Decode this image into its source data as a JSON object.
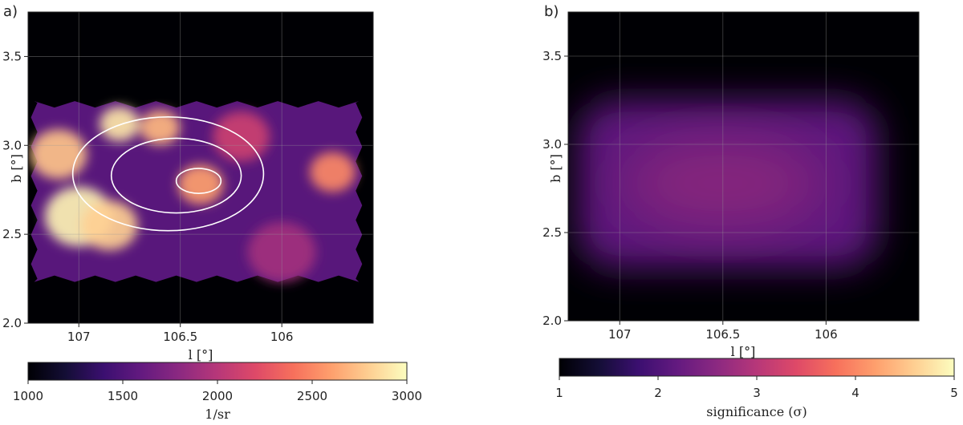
{
  "chart_data": [
    {
      "type": "heatmap",
      "panel_label": "a)",
      "xlabel": "l [°]",
      "ylabel": "b [°]",
      "xlim": [
        107.25,
        105.55
      ],
      "ylim": [
        2.0,
        3.75
      ],
      "xticks": [
        107,
        106.5,
        106
      ],
      "xtick_labels": [
        "107",
        "106.5",
        "106"
      ],
      "yticks": [
        2.0,
        2.5,
        3.0,
        3.5
      ],
      "ytick_labels": [
        "2.0",
        "2.5",
        "3.0",
        "3.5"
      ],
      "grid": true,
      "colormap": "magma",
      "colorbar": {
        "label": "1/sr",
        "range": [
          1000,
          3000
        ],
        "ticks": [
          1000,
          1500,
          2000,
          2500,
          3000
        ],
        "tick_labels": [
          "1000",
          "1500",
          "2000",
          "2500",
          "3000"
        ],
        "orientation": "horizontal"
      },
      "map_extent": {
        "l": [
          107.22,
          105.62
        ],
        "b": [
          2.25,
          3.24
        ]
      },
      "hotspots": [
        {
          "l": 106.8,
          "b": 3.12,
          "value": 2900,
          "sigma": 0.07
        },
        {
          "l": 106.6,
          "b": 3.1,
          "value": 2700,
          "sigma": 0.07
        },
        {
          "l": 107.1,
          "b": 2.95,
          "value": 2750,
          "sigma": 0.1
        },
        {
          "l": 107.0,
          "b": 2.6,
          "value": 2950,
          "sigma": 0.12
        },
        {
          "l": 106.85,
          "b": 2.55,
          "value": 2800,
          "sigma": 0.1
        },
        {
          "l": 106.4,
          "b": 2.78,
          "value": 2600,
          "sigma": 0.08
        },
        {
          "l": 105.75,
          "b": 2.85,
          "value": 2500,
          "sigma": 0.08
        },
        {
          "l": 106.2,
          "b": 3.05,
          "value": 2100,
          "sigma": 0.1
        },
        {
          "l": 106.0,
          "b": 2.4,
          "value": 1900,
          "sigma": 0.12
        }
      ],
      "contours": [
        {
          "center_l": 106.41,
          "center_b": 2.8,
          "half_width_l": 0.11,
          "half_height_b": 0.07
        },
        {
          "center_l": 106.52,
          "center_b": 2.83,
          "half_width_l": 0.32,
          "half_height_b": 0.21
        },
        {
          "center_l": 106.56,
          "center_b": 2.84,
          "half_width_l": 0.47,
          "half_height_b": 0.32
        }
      ]
    },
    {
      "type": "heatmap",
      "panel_label": "b)",
      "xlabel": "l [°]",
      "ylabel": "b [°]",
      "xlim": [
        107.25,
        105.55
      ],
      "ylim": [
        2.0,
        3.75
      ],
      "xticks": [
        107,
        106.5,
        106
      ],
      "xtick_labels": [
        "107",
        "106.5",
        "106"
      ],
      "yticks": [
        2.0,
        2.5,
        3.0,
        3.5
      ],
      "ytick_labels": [
        "2.0",
        "2.5",
        "3.0",
        "3.5"
      ],
      "grid": true,
      "colormap": "magma",
      "colorbar": {
        "label": "significance (σ)",
        "range": [
          1,
          5
        ],
        "ticks": [
          1,
          2,
          3,
          4,
          5
        ],
        "tick_labels": [
          "1",
          "2",
          "3",
          "4",
          "5"
        ],
        "orientation": "horizontal"
      },
      "map_extent": {
        "l": [
          107.2,
          105.75
        ],
        "b": [
          2.3,
          3.25
        ]
      },
      "peak_significance": 2.9,
      "peak_location": {
        "l": 106.5,
        "b": 2.78
      }
    }
  ]
}
